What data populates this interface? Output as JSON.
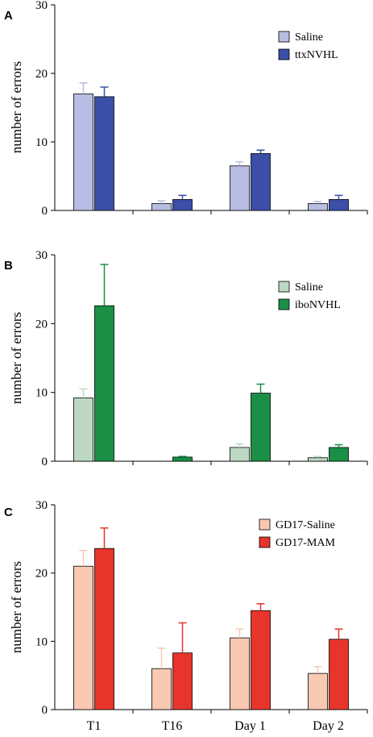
{
  "chart_data": [
    {
      "type": "bar",
      "panel": "A",
      "categories": [
        "T1",
        "T16",
        "Day 1",
        "Day 2"
      ],
      "ylabel": "number of errors",
      "ylim": [
        0,
        30
      ],
      "yticks": [
        "0",
        "10",
        "20",
        "30"
      ],
      "legend_position": "top-right",
      "grid": false,
      "series": [
        {
          "name": "Saline",
          "color": "#b8bde3",
          "values": [
            17.0,
            1.0,
            6.5,
            1.0
          ],
          "errors": [
            1.6,
            0.4,
            0.6,
            0.3
          ]
        },
        {
          "name": "ttxNVHL",
          "color": "#3b4fa8",
          "values": [
            16.6,
            1.6,
            8.3,
            1.6
          ],
          "errors": [
            1.4,
            0.6,
            0.5,
            0.6
          ]
        }
      ]
    },
    {
      "type": "bar",
      "panel": "B",
      "categories": [
        "T1",
        "T16",
        "Day 1",
        "Day 2"
      ],
      "ylabel": "number of errors",
      "ylim": [
        0,
        30
      ],
      "yticks": [
        "0",
        "10",
        "20",
        "30"
      ],
      "legend_position": "top-right",
      "grid": false,
      "series": [
        {
          "name": "Saline",
          "color": "#bcd8c2",
          "values": [
            9.2,
            0.0,
            2.0,
            0.5
          ],
          "errors": [
            1.3,
            0.0,
            0.5,
            0.2
          ]
        },
        {
          "name": "iboNVHL",
          "color": "#1a8f45",
          "values": [
            22.6,
            0.6,
            9.9,
            2.0
          ],
          "errors": [
            6.0,
            0.1,
            1.3,
            0.4
          ]
        }
      ]
    },
    {
      "type": "bar",
      "panel": "C",
      "categories": [
        "T1",
        "T16",
        "Day 1",
        "Day 2"
      ],
      "ylabel": "number of errors",
      "ylim": [
        0,
        30
      ],
      "yticks": [
        "0",
        "10",
        "20",
        "30"
      ],
      "legend_position": "top-right",
      "grid": false,
      "series": [
        {
          "name": "GD17-Saline",
          "color": "#f9c9b4",
          "values": [
            21.0,
            6.0,
            10.5,
            5.3
          ],
          "errors": [
            2.3,
            3.0,
            1.3,
            1.0
          ]
        },
        {
          "name": "GD17-MAM",
          "color": "#e8352b",
          "values": [
            23.6,
            8.3,
            14.5,
            10.3
          ],
          "errors": [
            3.0,
            4.4,
            1.0,
            1.5
          ]
        }
      ]
    }
  ]
}
